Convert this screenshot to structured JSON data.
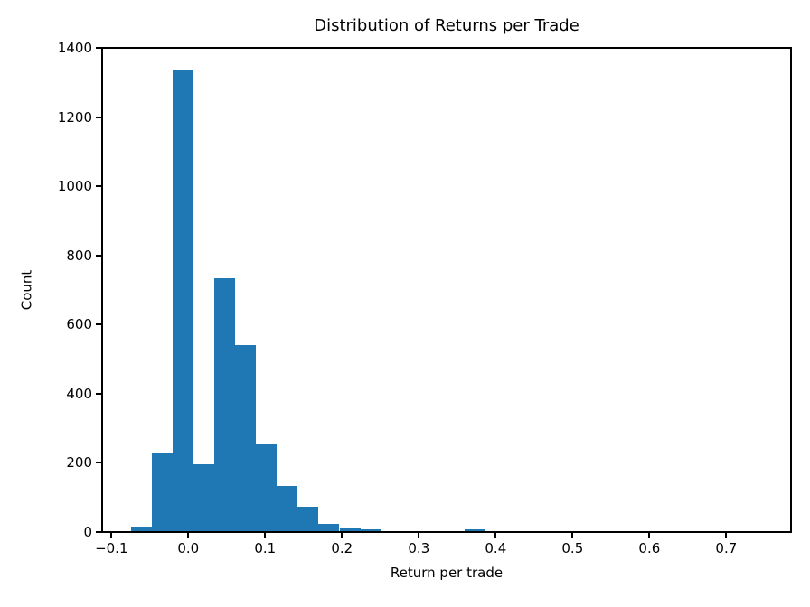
{
  "chart_data": {
    "type": "bar",
    "subtype": "histogram",
    "title": "Distribution of Returns per Trade",
    "xlabel": "Return per trade",
    "ylabel": "Count",
    "bar_color": "#1f77b4",
    "background_color": "#ffffff",
    "axis_color": "#000000",
    "grid": false,
    "legend": false,
    "bin_start": -0.075,
    "bin_width": 0.02717,
    "counts": [
      16,
      228,
      1335,
      197,
      733,
      540,
      254,
      133,
      74,
      24,
      10,
      7,
      0,
      0,
      2,
      0,
      7,
      0,
      0,
      0,
      0,
      0,
      0,
      0,
      0,
      0,
      0,
      0,
      0,
      1
    ],
    "xlim": [
      -0.1121,
      0.7843
    ],
    "ylim": [
      0,
      1400
    ],
    "xticks": [
      -0.1,
      0.0,
      0.1,
      0.2,
      0.3,
      0.4,
      0.5,
      0.6,
      0.7
    ],
    "xtick_labels": [
      "−0.1",
      "0.0",
      "0.1",
      "0.2",
      "0.3",
      "0.4",
      "0.5",
      "0.6",
      "0.7"
    ],
    "yticks": [
      0,
      200,
      400,
      600,
      800,
      1000,
      1200,
      1400
    ],
    "ytick_labels": [
      "0",
      "200",
      "400",
      "600",
      "800",
      "1000",
      "1200",
      "1400"
    ]
  }
}
